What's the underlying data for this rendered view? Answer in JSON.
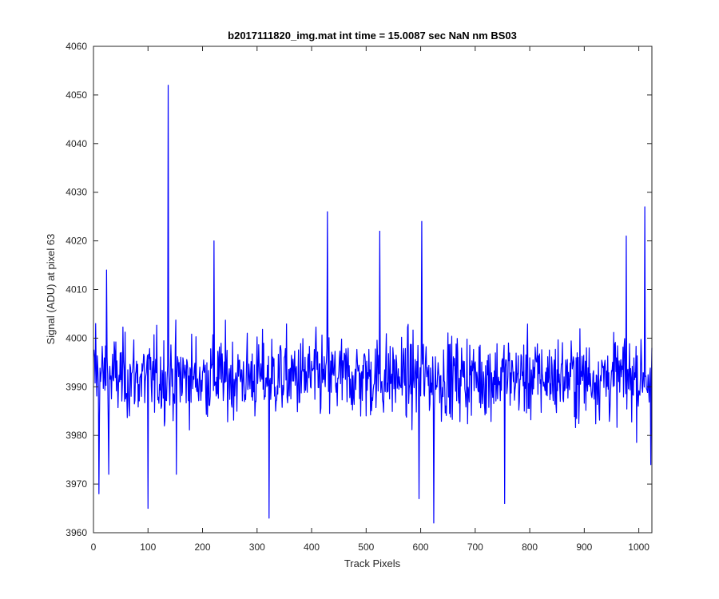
{
  "chart_data": {
    "type": "line",
    "title": "b2017111820_img.mat int time = 15.0087 sec  NaN nm BS03",
    "xlabel": "Track Pixels",
    "ylabel": "Signal (ADU) at pixel 63",
    "xlim": [
      0,
      1024
    ],
    "ylim": [
      3960,
      4060
    ],
    "xticks": [
      0,
      100,
      200,
      300,
      400,
      500,
      600,
      700,
      800,
      900,
      1000
    ],
    "yticks": [
      3960,
      3970,
      3980,
      3990,
      4000,
      4010,
      4020,
      4030,
      4040,
      4050,
      4060
    ],
    "grid": false,
    "legend": "none",
    "line_color": "#0000ff",
    "series": [
      {
        "x_start": 1,
        "x_step": 1,
        "note_points": "values are ~1024 noisy samples around 3992 ADU; notable extremes listed",
        "values": [],
        "extremes": [
          {
            "x": 4,
            "y": 4003
          },
          {
            "x": 10,
            "y": 3968
          },
          {
            "x": 24,
            "y": 4014
          },
          {
            "x": 28,
            "y": 3972
          },
          {
            "x": 100,
            "y": 3965
          },
          {
            "x": 137,
            "y": 4052
          },
          {
            "x": 152,
            "y": 3972
          },
          {
            "x": 221,
            "y": 4020
          },
          {
            "x": 322,
            "y": 3963
          },
          {
            "x": 429,
            "y": 4026
          },
          {
            "x": 525,
            "y": 4022
          },
          {
            "x": 597,
            "y": 3967
          },
          {
            "x": 602,
            "y": 4024
          },
          {
            "x": 624,
            "y": 3962
          },
          {
            "x": 754,
            "y": 3966
          },
          {
            "x": 977,
            "y": 4021
          },
          {
            "x": 1011,
            "y": 4027
          },
          {
            "x": 1022,
            "y": 3974
          }
        ]
      }
    ]
  }
}
